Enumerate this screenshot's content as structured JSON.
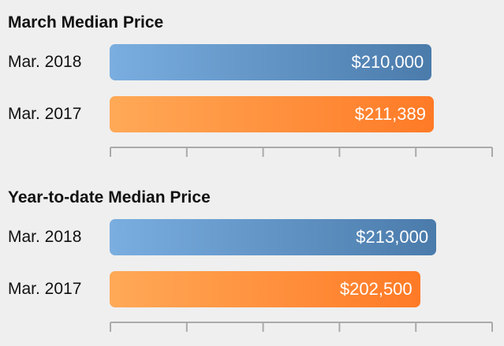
{
  "chart_data": [
    {
      "type": "bar",
      "orientation": "horizontal",
      "title": "March Median Price",
      "categories": [
        "Mar. 2018",
        "Mar. 2017"
      ],
      "values": [
        210000,
        211389
      ],
      "value_labels": [
        "$210,000",
        "$211,389"
      ],
      "colors": [
        {
          "from": "#7aaee0",
          "to": "#4a7bab"
        },
        {
          "from": "#ffa957",
          "to": "#ff7a26"
        }
      ],
      "xlim": [
        0,
        250000
      ],
      "tick_count": 6,
      "grid": false,
      "legend": "none"
    },
    {
      "type": "bar",
      "orientation": "horizontal",
      "title": "Year-to-date Median Price",
      "categories": [
        "Mar. 2018",
        "Mar. 2017"
      ],
      "values": [
        213000,
        202500
      ],
      "value_labels": [
        "$213,000",
        "$202,500"
      ],
      "colors": [
        {
          "from": "#7aaee0",
          "to": "#4a7bab"
        },
        {
          "from": "#ffa957",
          "to": "#ff7a26"
        }
      ],
      "xlim": [
        0,
        250000
      ],
      "tick_count": 6,
      "grid": false,
      "legend": "none"
    }
  ]
}
